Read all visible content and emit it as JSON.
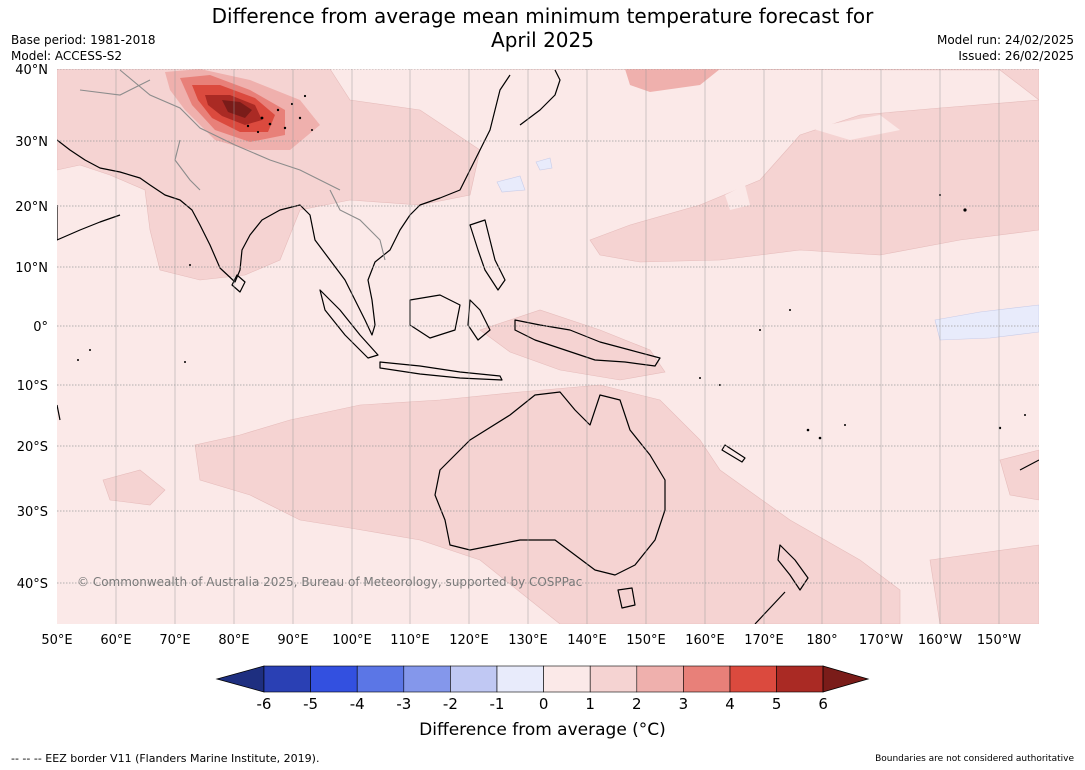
{
  "header": {
    "title_line1": "Difference from average mean minimum temperature forecast for",
    "title_line2": "April 2025",
    "base_period": "Base period: 1981-2018",
    "model": "Model: ACCESS-S2",
    "model_run": "Model run: 24/02/2025",
    "issued": "Issued: 26/02/2025"
  },
  "map": {
    "lon_labels": [
      "50°E",
      "60°E",
      "70°E",
      "80°E",
      "90°E",
      "100°E",
      "110°E",
      "120°E",
      "130°E",
      "140°E",
      "150°E",
      "160°E",
      "170°E",
      "180°",
      "170°W",
      "160°W",
      "150°W"
    ],
    "lat_labels": [
      "40°N",
      "30°N",
      "20°N",
      "10°N",
      "0°",
      "10°S",
      "20°S",
      "30°S",
      "40°S"
    ],
    "copyright": "© Commonwealth of Australia 2025, Bureau of Meteorology, supported by COSPPac",
    "regions": [
      "Central Asia / Tibetan Plateau (+3 to +6)",
      "Indian subcontinent (+1 to +2)",
      "Australia (+1 to +2)",
      "Southern Ocean / Tasman Sea (+1 to +2)",
      "North Pacific band (+1 to +2)",
      "Equatorial central Pacific (-1 to 0)"
    ]
  },
  "colorbar": {
    "ticks": [
      "-6",
      "-5",
      "-4",
      "-3",
      "-2",
      "-1",
      "0",
      "1",
      "2",
      "3",
      "4",
      "5",
      "6"
    ],
    "colors": [
      "#1e2f80",
      "#2a40b4",
      "#3350e0",
      "#5b76e6",
      "#8497eb",
      "#c0c8f3",
      "#e8ebfb",
      "#fbe9e8",
      "#f5d3d2",
      "#efb0ad",
      "#e88079",
      "#db4a3e",
      "#aa2a24",
      "#7a1c19"
    ],
    "label": "Difference from average ($^\\circ$C)",
    "label_display": "Difference from average (°C)"
  },
  "footer": {
    "eez_legend": "--  --  -- EEZ border V11 (Flanders Marine Institute, 2019).",
    "disclaimer": "Boundaries are not considered authoritative"
  }
}
